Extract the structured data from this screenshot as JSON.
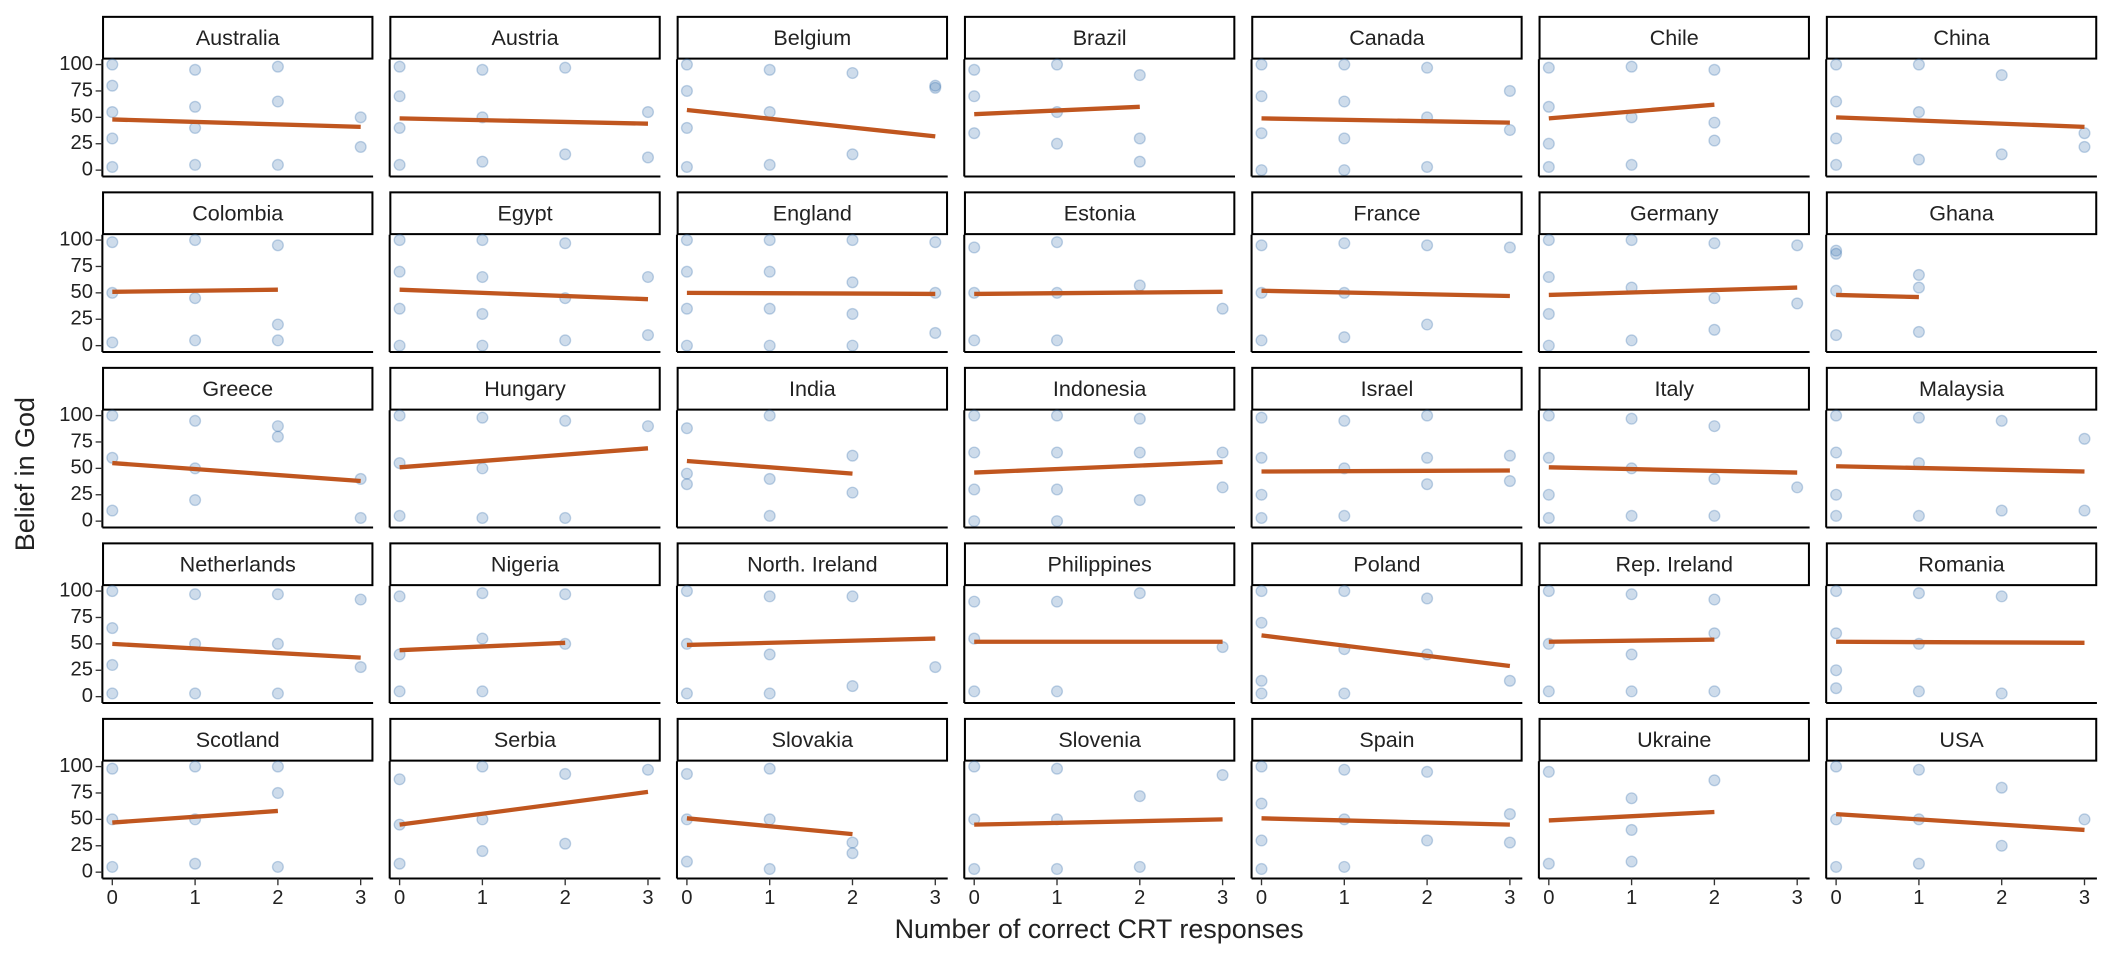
{
  "chart_data": {
    "type": "scatter",
    "xlabel": "Number of correct CRT responses",
    "ylabel": "Belief in God",
    "xlim": [
      -0.12,
      3.15
    ],
    "ylim": [
      -6,
      105
    ],
    "xticks": [
      0,
      1,
      2,
      3
    ],
    "yticks": [
      0,
      25,
      50,
      75,
      100
    ],
    "point_color": "#3a75b0",
    "fit_color": "#c0561f",
    "grid": false,
    "panels": [
      {
        "title": "Australia",
        "x": [
          0,
          0,
          0,
          0,
          0,
          1,
          1,
          1,
          1,
          2,
          2,
          2,
          3,
          3
        ],
        "y": [
          100,
          80,
          55,
          30,
          3,
          95,
          60,
          40,
          5,
          98,
          65,
          5,
          50,
          22
        ],
        "fit_x": [
          0,
          3
        ],
        "fit_y": [
          48,
          41
        ]
      },
      {
        "title": "Austria",
        "x": [
          0,
          0,
          0,
          0,
          1,
          1,
          1,
          2,
          2,
          3,
          3
        ],
        "y": [
          98,
          70,
          40,
          5,
          95,
          50,
          8,
          97,
          15,
          55,
          12
        ],
        "fit_x": [
          0,
          3
        ],
        "fit_y": [
          49,
          44
        ]
      },
      {
        "title": "Belgium",
        "x": [
          0,
          0,
          0,
          0,
          1,
          1,
          1,
          2,
          2,
          3,
          3
        ],
        "y": [
          100,
          75,
          40,
          3,
          95,
          55,
          5,
          92,
          15,
          80,
          78
        ],
        "fit_x": [
          0,
          3
        ],
        "fit_y": [
          57,
          32
        ]
      },
      {
        "title": "Brazil",
        "x": [
          0,
          0,
          0,
          1,
          1,
          1,
          2,
          2,
          2
        ],
        "y": [
          95,
          70,
          35,
          100,
          55,
          25,
          90,
          30,
          8
        ],
        "fit_x": [
          0,
          2
        ],
        "fit_y": [
          53,
          60
        ]
      },
      {
        "title": "Canada",
        "x": [
          0,
          0,
          0,
          0,
          1,
          1,
          1,
          1,
          2,
          2,
          2,
          3,
          3
        ],
        "y": [
          100,
          70,
          35,
          0,
          100,
          65,
          30,
          0,
          97,
          50,
          3,
          75,
          38
        ],
        "fit_x": [
          0,
          3
        ],
        "fit_y": [
          49,
          45
        ]
      },
      {
        "title": "Chile",
        "x": [
          0,
          0,
          0,
          0,
          1,
          1,
          1,
          2,
          2,
          2
        ],
        "y": [
          97,
          60,
          25,
          3,
          98,
          50,
          5,
          95,
          45,
          28
        ],
        "fit_x": [
          0,
          2
        ],
        "fit_y": [
          49,
          62
        ]
      },
      {
        "title": "China",
        "x": [
          0,
          0,
          0,
          0,
          1,
          1,
          1,
          2,
          2,
          3,
          3
        ],
        "y": [
          100,
          65,
          30,
          5,
          100,
          55,
          10,
          90,
          15,
          35,
          22
        ],
        "fit_x": [
          0,
          3
        ],
        "fit_y": [
          50,
          41
        ]
      },
      {
        "title": "Colombia",
        "x": [
          0,
          0,
          0,
          1,
          1,
          1,
          2,
          2,
          2
        ],
        "y": [
          98,
          50,
          3,
          100,
          45,
          5,
          95,
          20,
          5
        ],
        "fit_x": [
          0,
          2
        ],
        "fit_y": [
          51,
          53
        ]
      },
      {
        "title": "Egypt",
        "x": [
          0,
          0,
          0,
          0,
          1,
          1,
          1,
          1,
          2,
          2,
          2,
          3,
          3
        ],
        "y": [
          100,
          70,
          35,
          0,
          100,
          65,
          30,
          0,
          97,
          45,
          5,
          65,
          10
        ],
        "fit_x": [
          0,
          3
        ],
        "fit_y": [
          53,
          44
        ]
      },
      {
        "title": "England",
        "x": [
          0,
          0,
          0,
          0,
          1,
          1,
          1,
          1,
          2,
          2,
          2,
          2,
          3,
          3,
          3
        ],
        "y": [
          100,
          70,
          35,
          0,
          100,
          70,
          35,
          0,
          100,
          60,
          30,
          0,
          98,
          50,
          12
        ],
        "fit_x": [
          0,
          3
        ],
        "fit_y": [
          50,
          49
        ]
      },
      {
        "title": "Estonia",
        "x": [
          0,
          0,
          0,
          1,
          1,
          1,
          2,
          3
        ],
        "y": [
          93,
          50,
          5,
          98,
          50,
          5,
          57,
          35
        ],
        "fit_x": [
          0,
          3
        ],
        "fit_y": [
          49,
          51
        ]
      },
      {
        "title": "France",
        "x": [
          0,
          0,
          0,
          1,
          1,
          1,
          2,
          2,
          3
        ],
        "y": [
          95,
          50,
          5,
          97,
          50,
          8,
          95,
          20,
          93
        ],
        "fit_x": [
          0,
          3
        ],
        "fit_y": [
          52,
          47
        ]
      },
      {
        "title": "Germany",
        "x": [
          0,
          0,
          0,
          0,
          1,
          1,
          1,
          2,
          2,
          2,
          3,
          3
        ],
        "y": [
          100,
          65,
          30,
          0,
          100,
          55,
          5,
          97,
          45,
          15,
          95,
          40
        ],
        "fit_x": [
          0,
          3
        ],
        "fit_y": [
          48,
          55
        ]
      },
      {
        "title": "Ghana",
        "x": [
          0,
          0,
          0,
          0,
          1,
          1,
          1
        ],
        "y": [
          90,
          87,
          52,
          10,
          67,
          55,
          13
        ],
        "fit_x": [
          0,
          1
        ],
        "fit_y": [
          48,
          46
        ]
      },
      {
        "title": "Greece",
        "x": [
          0,
          0,
          0,
          1,
          1,
          1,
          2,
          2,
          3,
          3
        ],
        "y": [
          100,
          60,
          10,
          95,
          50,
          20,
          90,
          80,
          40,
          3
        ],
        "fit_x": [
          0,
          3
        ],
        "fit_y": [
          55,
          38
        ]
      },
      {
        "title": "Hungary",
        "x": [
          0,
          0,
          0,
          1,
          1,
          1,
          2,
          2,
          3
        ],
        "y": [
          100,
          55,
          5,
          98,
          50,
          3,
          95,
          3,
          90
        ],
        "fit_x": [
          0,
          3
        ],
        "fit_y": [
          51,
          69
        ]
      },
      {
        "title": "India",
        "x": [
          0,
          0,
          0,
          1,
          1,
          1,
          2,
          2
        ],
        "y": [
          88,
          45,
          35,
          100,
          40,
          5,
          62,
          27
        ],
        "fit_x": [
          0,
          2
        ],
        "fit_y": [
          57,
          45
        ]
      },
      {
        "title": "Indonesia",
        "x": [
          0,
          0,
          0,
          0,
          1,
          1,
          1,
          1,
          2,
          2,
          2,
          3,
          3
        ],
        "y": [
          100,
          65,
          30,
          0,
          100,
          65,
          30,
          0,
          97,
          65,
          20,
          65,
          32
        ],
        "fit_x": [
          0,
          3
        ],
        "fit_y": [
          46,
          56
        ]
      },
      {
        "title": "Israel",
        "x": [
          0,
          0,
          0,
          0,
          1,
          1,
          1,
          2,
          2,
          2,
          3,
          3
        ],
        "y": [
          98,
          60,
          25,
          3,
          95,
          50,
          5,
          100,
          60,
          35,
          62,
          38
        ],
        "fit_x": [
          0,
          3
        ],
        "fit_y": [
          47,
          48
        ]
      },
      {
        "title": "Italy",
        "x": [
          0,
          0,
          0,
          0,
          1,
          1,
          1,
          2,
          2,
          2,
          3
        ],
        "y": [
          100,
          60,
          25,
          3,
          97,
          50,
          5,
          90,
          40,
          5,
          32
        ],
        "fit_x": [
          0,
          3
        ],
        "fit_y": [
          51,
          46
        ]
      },
      {
        "title": "Malaysia",
        "x": [
          0,
          0,
          0,
          0,
          1,
          1,
          1,
          2,
          2,
          3,
          3
        ],
        "y": [
          100,
          65,
          25,
          5,
          98,
          55,
          5,
          95,
          10,
          78,
          10
        ],
        "fit_x": [
          0,
          3
        ],
        "fit_y": [
          52,
          47
        ]
      },
      {
        "title": "Netherlands",
        "x": [
          0,
          0,
          0,
          0,
          1,
          1,
          1,
          2,
          2,
          2,
          3,
          3
        ],
        "y": [
          100,
          65,
          30,
          3,
          97,
          50,
          3,
          97,
          50,
          3,
          92,
          28
        ],
        "fit_x": [
          0,
          3
        ],
        "fit_y": [
          50,
          37
        ]
      },
      {
        "title": "Nigeria",
        "x": [
          0,
          0,
          0,
          1,
          1,
          1,
          2,
          2
        ],
        "y": [
          95,
          40,
          5,
          98,
          55,
          5,
          97,
          50
        ],
        "fit_x": [
          0,
          2
        ],
        "fit_y": [
          44,
          51
        ]
      },
      {
        "title": "North. Ireland",
        "x": [
          0,
          0,
          0,
          1,
          1,
          1,
          2,
          2,
          3
        ],
        "y": [
          100,
          50,
          3,
          95,
          40,
          3,
          95,
          10,
          28
        ],
        "fit_x": [
          0,
          3
        ],
        "fit_y": [
          49,
          55
        ]
      },
      {
        "title": "Philippines",
        "x": [
          0,
          0,
          0,
          1,
          1,
          2,
          3
        ],
        "y": [
          90,
          55,
          5,
          90,
          5,
          98,
          47
        ],
        "fit_x": [
          0,
          3
        ],
        "fit_y": [
          52,
          52
        ]
      },
      {
        "title": "Poland",
        "x": [
          0,
          0,
          0,
          0,
          1,
          1,
          1,
          2,
          2,
          3
        ],
        "y": [
          100,
          70,
          15,
          3,
          100,
          45,
          3,
          93,
          40,
          15
        ],
        "fit_x": [
          0,
          3
        ],
        "fit_y": [
          58,
          29
        ]
      },
      {
        "title": "Rep. Ireland",
        "x": [
          0,
          0,
          0,
          1,
          1,
          1,
          2,
          2,
          2
        ],
        "y": [
          100,
          50,
          5,
          97,
          40,
          5,
          92,
          60,
          5
        ],
        "fit_x": [
          0,
          2
        ],
        "fit_y": [
          52,
          54
        ]
      },
      {
        "title": "Romania",
        "x": [
          0,
          0,
          0,
          0,
          1,
          1,
          1,
          2,
          2
        ],
        "y": [
          100,
          60,
          25,
          8,
          98,
          50,
          5,
          95,
          3
        ],
        "fit_x": [
          0,
          3
        ],
        "fit_y": [
          52,
          51
        ]
      },
      {
        "title": "Scotland",
        "x": [
          0,
          0,
          0,
          1,
          1,
          1,
          2,
          2,
          2
        ],
        "y": [
          98,
          50,
          5,
          100,
          50,
          8,
          100,
          75,
          5
        ],
        "fit_x": [
          0,
          2
        ],
        "fit_y": [
          47,
          58
        ]
      },
      {
        "title": "Serbia",
        "x": [
          0,
          0,
          0,
          1,
          1,
          1,
          2,
          2,
          3
        ],
        "y": [
          88,
          45,
          8,
          100,
          50,
          20,
          93,
          27,
          97
        ],
        "fit_x": [
          0,
          3
        ],
        "fit_y": [
          45,
          76
        ]
      },
      {
        "title": "Slovakia",
        "x": [
          0,
          0,
          0,
          1,
          1,
          1,
          2,
          2
        ],
        "y": [
          93,
          50,
          10,
          98,
          50,
          3,
          28,
          18
        ],
        "fit_x": [
          0,
          2
        ],
        "fit_y": [
          51,
          36
        ]
      },
      {
        "title": "Slovenia",
        "x": [
          0,
          0,
          0,
          1,
          1,
          1,
          2,
          2,
          3
        ],
        "y": [
          100,
          50,
          3,
          98,
          50,
          3,
          72,
          5,
          92
        ],
        "fit_x": [
          0,
          3
        ],
        "fit_y": [
          45,
          50
        ]
      },
      {
        "title": "Spain",
        "x": [
          0,
          0,
          0,
          0,
          1,
          1,
          1,
          2,
          2,
          3,
          3
        ],
        "y": [
          100,
          65,
          30,
          3,
          97,
          50,
          5,
          95,
          30,
          55,
          28
        ],
        "fit_x": [
          0,
          3
        ],
        "fit_y": [
          51,
          45
        ]
      },
      {
        "title": "Ukraine",
        "x": [
          0,
          0,
          1,
          1,
          1,
          2
        ],
        "y": [
          95,
          8,
          70,
          40,
          10,
          87
        ],
        "fit_x": [
          0,
          2
        ],
        "fit_y": [
          49,
          57
        ]
      },
      {
        "title": "USA",
        "x": [
          0,
          0,
          0,
          1,
          1,
          1,
          2,
          2,
          3
        ],
        "y": [
          100,
          50,
          5,
          97,
          50,
          8,
          80,
          25,
          50
        ],
        "fit_x": [
          0,
          3
        ],
        "fit_y": [
          55,
          40
        ]
      }
    ]
  }
}
